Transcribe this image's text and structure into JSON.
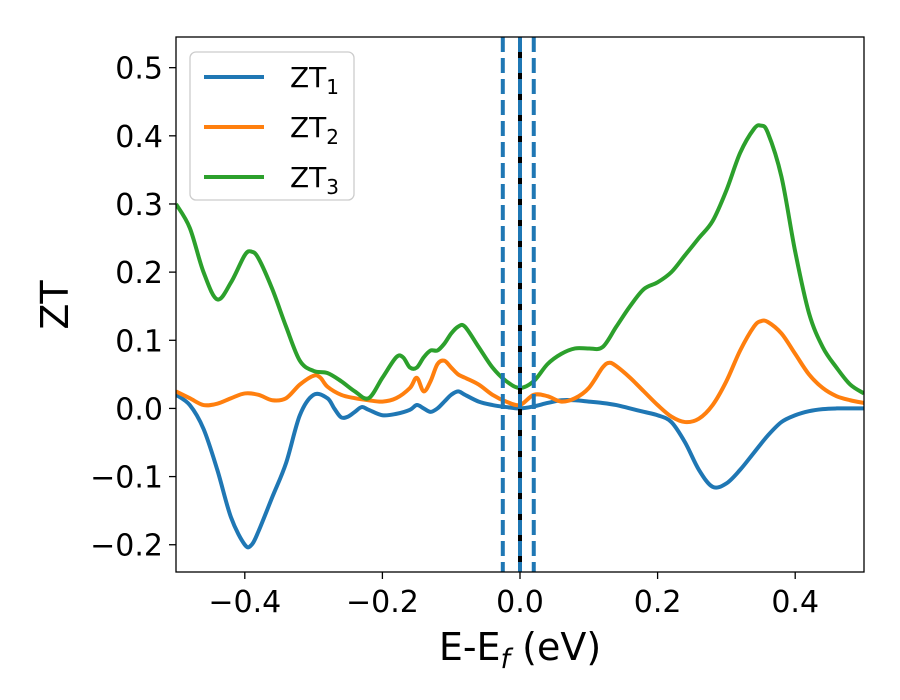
{
  "chart_data": {
    "type": "line",
    "xlabel": "E-E_f (eV)",
    "ylabel": "ZT",
    "xlim": [
      -0.5,
      0.5
    ],
    "ylim": [
      -0.24,
      0.545
    ],
    "xticks": [
      -0.4,
      -0.2,
      0.0,
      0.2,
      0.4
    ],
    "xtick_labels": [
      "−0.4",
      "−0.2",
      "0.0",
      "0.2",
      "0.4"
    ],
    "yticks": [
      -0.2,
      -0.1,
      0.0,
      0.1,
      0.2,
      0.3,
      0.4,
      0.5
    ],
    "ytick_labels": [
      "−0.2",
      "−0.1",
      "0.0",
      "0.1",
      "0.2",
      "0.3",
      "0.4",
      "0.5"
    ],
    "grid": false,
    "legend_position": "top-left",
    "vlines": [
      {
        "x": 0.0,
        "color": "#000000",
        "style": "solid"
      },
      {
        "x": -0.025,
        "color": "#1f77b4",
        "style": "dashed"
      },
      {
        "x": 0.0,
        "color": "#1f77b4",
        "style": "dashed"
      },
      {
        "x": 0.02,
        "color": "#1f77b4",
        "style": "dashed"
      }
    ],
    "series": [
      {
        "name": "ZT",
        "subscript": "1",
        "color": "#1f77b4",
        "x": [
          -0.5,
          -0.48,
          -0.46,
          -0.44,
          -0.42,
          -0.4,
          -0.39,
          -0.38,
          -0.36,
          -0.34,
          -0.32,
          -0.3,
          -0.28,
          -0.27,
          -0.26,
          -0.25,
          -0.24,
          -0.23,
          -0.22,
          -0.2,
          -0.18,
          -0.16,
          -0.15,
          -0.14,
          -0.13,
          -0.12,
          -0.11,
          -0.1,
          -0.09,
          -0.08,
          -0.06,
          -0.04,
          -0.02,
          0.0,
          0.02,
          0.04,
          0.06,
          0.08,
          0.1,
          0.12,
          0.14,
          0.16,
          0.18,
          0.2,
          0.22,
          0.24,
          0.26,
          0.28,
          0.3,
          0.32,
          0.34,
          0.36,
          0.38,
          0.4,
          0.42,
          0.44,
          0.46,
          0.48,
          0.5
        ],
        "y": [
          0.02,
          0.005,
          -0.03,
          -0.09,
          -0.16,
          -0.2,
          -0.2,
          -0.18,
          -0.13,
          -0.08,
          -0.01,
          0.02,
          0.015,
          0.0,
          -0.013,
          -0.012,
          -0.005,
          0.002,
          -0.002,
          -0.01,
          -0.008,
          -0.002,
          0.005,
          0.0,
          -0.005,
          0.0,
          0.01,
          0.02,
          0.025,
          0.02,
          0.01,
          0.005,
          0.002,
          0.0,
          0.003,
          0.008,
          0.012,
          0.012,
          0.01,
          0.008,
          0.005,
          0.0,
          -0.005,
          -0.01,
          -0.02,
          -0.05,
          -0.09,
          -0.115,
          -0.11,
          -0.09,
          -0.065,
          -0.04,
          -0.02,
          -0.01,
          -0.004,
          -0.001,
          0.0,
          0.0,
          0.0
        ]
      },
      {
        "name": "ZT",
        "subscript": "2",
        "color": "#ff7f0e",
        "x": [
          -0.5,
          -0.48,
          -0.46,
          -0.44,
          -0.42,
          -0.4,
          -0.38,
          -0.36,
          -0.34,
          -0.32,
          -0.3,
          -0.29,
          -0.28,
          -0.26,
          -0.24,
          -0.22,
          -0.2,
          -0.18,
          -0.16,
          -0.15,
          -0.14,
          -0.13,
          -0.12,
          -0.11,
          -0.1,
          -0.09,
          -0.08,
          -0.06,
          -0.04,
          -0.02,
          0.0,
          0.02,
          0.04,
          0.06,
          0.08,
          0.1,
          0.12,
          0.13,
          0.14,
          0.16,
          0.18,
          0.2,
          0.22,
          0.24,
          0.26,
          0.28,
          0.3,
          0.32,
          0.34,
          0.35,
          0.36,
          0.38,
          0.4,
          0.42,
          0.44,
          0.46,
          0.48,
          0.5
        ],
        "y": [
          0.025,
          0.015,
          0.005,
          0.007,
          0.015,
          0.022,
          0.02,
          0.012,
          0.015,
          0.035,
          0.048,
          0.045,
          0.032,
          0.02,
          0.015,
          0.012,
          0.01,
          0.015,
          0.03,
          0.045,
          0.025,
          0.04,
          0.065,
          0.07,
          0.06,
          0.05,
          0.045,
          0.035,
          0.02,
          0.01,
          0.005,
          0.02,
          0.018,
          0.01,
          0.015,
          0.03,
          0.06,
          0.067,
          0.062,
          0.045,
          0.025,
          0.005,
          -0.012,
          -0.02,
          -0.015,
          0.005,
          0.04,
          0.085,
          0.12,
          0.128,
          0.127,
          0.11,
          0.08,
          0.05,
          0.03,
          0.018,
          0.012,
          0.008
        ]
      },
      {
        "name": "ZT",
        "subscript": "3",
        "color": "#2ca02c",
        "x": [
          -0.5,
          -0.48,
          -0.46,
          -0.44,
          -0.42,
          -0.4,
          -0.39,
          -0.38,
          -0.36,
          -0.34,
          -0.32,
          -0.3,
          -0.28,
          -0.26,
          -0.24,
          -0.22,
          -0.2,
          -0.18,
          -0.17,
          -0.16,
          -0.15,
          -0.14,
          -0.13,
          -0.12,
          -0.11,
          -0.1,
          -0.09,
          -0.08,
          -0.06,
          -0.04,
          -0.02,
          0.0,
          0.02,
          0.04,
          0.06,
          0.08,
          0.1,
          0.12,
          0.14,
          0.16,
          0.18,
          0.2,
          0.22,
          0.24,
          0.26,
          0.28,
          0.3,
          0.32,
          0.34,
          0.35,
          0.36,
          0.38,
          0.4,
          0.42,
          0.44,
          0.46,
          0.48,
          0.5
        ],
        "y": [
          0.3,
          0.265,
          0.2,
          0.16,
          0.185,
          0.225,
          0.23,
          0.22,
          0.175,
          0.12,
          0.07,
          0.055,
          0.052,
          0.04,
          0.025,
          0.015,
          0.045,
          0.075,
          0.075,
          0.06,
          0.06,
          0.075,
          0.085,
          0.085,
          0.095,
          0.11,
          0.12,
          0.12,
          0.09,
          0.06,
          0.04,
          0.03,
          0.04,
          0.065,
          0.08,
          0.088,
          0.088,
          0.09,
          0.12,
          0.15,
          0.175,
          0.185,
          0.2,
          0.225,
          0.25,
          0.275,
          0.32,
          0.375,
          0.41,
          0.415,
          0.405,
          0.34,
          0.23,
          0.14,
          0.09,
          0.06,
          0.035,
          0.022
        ]
      }
    ]
  }
}
